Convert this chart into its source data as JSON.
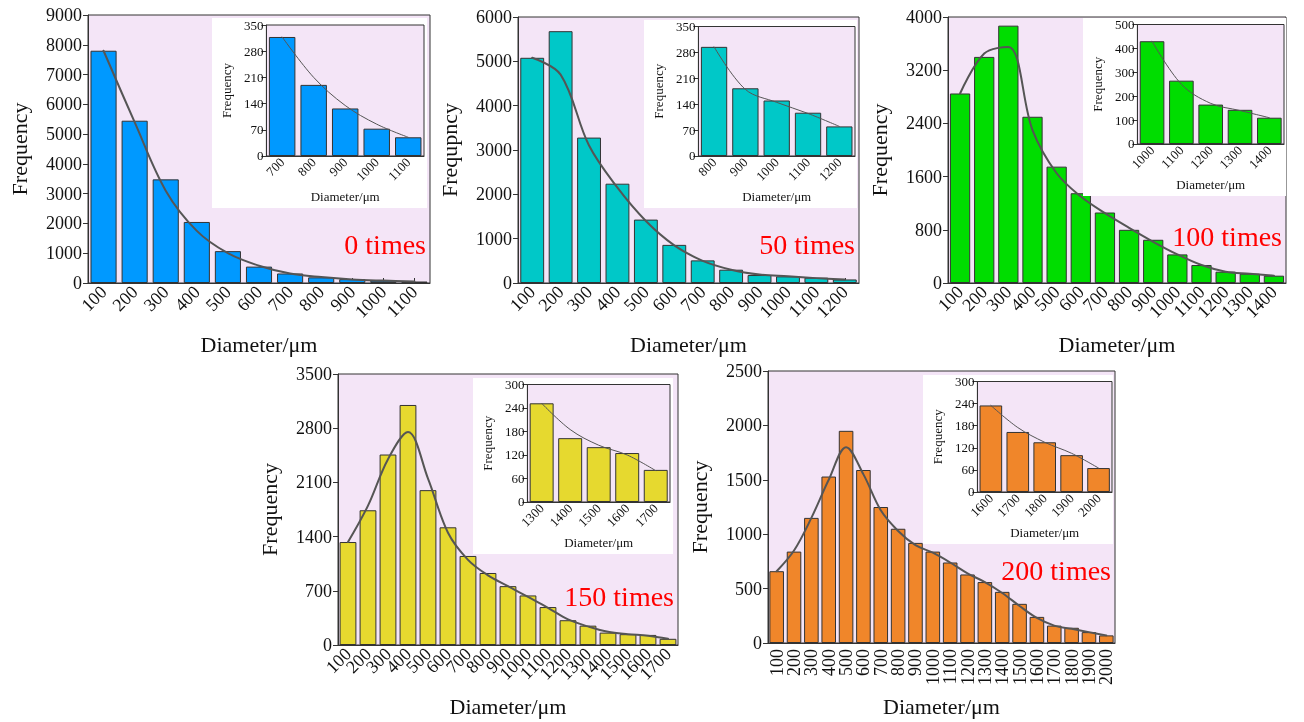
{
  "chart_data": [
    {
      "type": "bar",
      "xlabel": "Diameter/μm",
      "ylabel": "Frequency",
      "annotations": [
        "0 times"
      ],
      "marker": "none",
      "line_style": "solid",
      "categories": [
        "100",
        "200",
        "300",
        "400",
        "500",
        "600",
        "700",
        "800",
        "900",
        "1000",
        "1100"
      ],
      "ylim": [
        0,
        9000
      ],
      "yticks": [
        0,
        1000,
        2000,
        3000,
        4000,
        5000,
        6000,
        7000,
        8000,
        9000
      ],
      "series": [
        {
          "type": "bar",
          "color": "#0099ff",
          "values": [
            7800,
            5450,
            3480,
            2050,
            1070,
            550,
            320,
            190,
            130,
            80,
            50
          ]
        },
        {
          "type": "line",
          "color": "#555555",
          "values": [
            7800,
            5400,
            3100,
            1750,
            1000,
            580,
            320,
            200,
            120,
            80,
            50
          ]
        }
      ]
    },
    {
      "type": "bar",
      "xlabel": "Diameter/μm",
      "ylabel": "Frequency",
      "marker": "none",
      "line_style": "solid",
      "categories": [
        "700",
        "800",
        "900",
        "1000",
        "1100"
      ],
      "ylim": [
        0,
        350
      ],
      "yticks": [
        0,
        70,
        140,
        210,
        280,
        350
      ],
      "series": [
        {
          "type": "bar",
          "color": "#0099ff",
          "values": [
            318,
            190,
            127,
            73,
            50
          ]
        },
        {
          "type": "line",
          "color": "#555555",
          "values": [
            318,
            210,
            135,
            85,
            50
          ]
        }
      ]
    },
    {
      "type": "bar",
      "xlabel": "Diameter/μm",
      "ylabel": "Frequpncy",
      "annotations": [
        "50 times"
      ],
      "marker": "none",
      "line_style": "solid",
      "categories": [
        "100",
        "200",
        "300",
        "400",
        "500",
        "600",
        "700",
        "800",
        "900",
        "1000",
        "1100",
        "1200"
      ],
      "ylim": [
        0,
        6000
      ],
      "yticks": [
        0,
        1000,
        2000,
        3000,
        4000,
        5000,
        6000
      ],
      "series": [
        {
          "type": "bar",
          "color": "#00c8c8",
          "values": [
            5080,
            5680,
            3280,
            2240,
            1430,
            860,
            510,
            300,
            180,
            150,
            120,
            80
          ]
        },
        {
          "type": "line",
          "color": "#555555",
          "values": [
            5080,
            4700,
            3100,
            2150,
            1400,
            850,
            500,
            300,
            190,
            150,
            110,
            80
          ]
        }
      ]
    },
    {
      "type": "bar",
      "xlabel": "Diameter/μm",
      "ylabel": "Frequency",
      "marker": "none",
      "line_style": "solid",
      "categories": [
        "800",
        "900",
        "1000",
        "1100",
        "1200"
      ],
      "ylim": [
        0,
        350
      ],
      "yticks": [
        0,
        70,
        140,
        210,
        280,
        350
      ],
      "series": [
        {
          "type": "bar",
          "color": "#00c8c8",
          "values": [
            295,
            183,
            150,
            117,
            80
          ]
        },
        {
          "type": "line",
          "color": "#555555",
          "values": [
            295,
            180,
            145,
            115,
            80
          ]
        }
      ]
    },
    {
      "type": "bar",
      "xlabel": "Diameter/μm",
      "ylabel": "Frequency",
      "annotations": [
        "100 times"
      ],
      "marker": "none",
      "line_style": "solid",
      "categories": [
        "100",
        "200",
        "300",
        "400",
        "500",
        "600",
        "700",
        "800",
        "900",
        "1000",
        "1100",
        "1200",
        "1300",
        "1400"
      ],
      "ylim": [
        0,
        4000
      ],
      "yticks": [
        0,
        800,
        1600,
        2400,
        3200,
        4000
      ],
      "series": [
        {
          "type": "bar",
          "color": "#00dd00",
          "values": [
            2850,
            3400,
            3870,
            2500,
            1750,
            1350,
            1060,
            800,
            650,
            430,
            270,
            170,
            140,
            110
          ]
        },
        {
          "type": "line",
          "color": "#555555",
          "values": [
            2850,
            3450,
            3550,
            2300,
            1650,
            1300,
            1050,
            830,
            620,
            430,
            270,
            170,
            140,
            110
          ]
        }
      ]
    },
    {
      "type": "bar",
      "xlabel": "Diameter/μm",
      "ylabel": "Frequency",
      "marker": "none",
      "line_style": "solid",
      "categories": [
        "1000",
        "1100",
        "1200",
        "1300",
        "1400"
      ],
      "ylim": [
        0,
        500
      ],
      "yticks": [
        0,
        100,
        200,
        300,
        400,
        500
      ],
      "series": [
        {
          "type": "bar",
          "color": "#00dd00",
          "values": [
            430,
            265,
            165,
            143,
            110
          ]
        },
        {
          "type": "line",
          "color": "#555555",
          "values": [
            430,
            250,
            170,
            140,
            110
          ]
        }
      ]
    },
    {
      "type": "bar",
      "xlabel": "Diameter/μm",
      "ylabel": "Frequency",
      "annotations": [
        "150 times"
      ],
      "marker": "none",
      "line_style": "solid",
      "categories": [
        "100",
        "200",
        "300",
        "400",
        "500",
        "600",
        "700",
        "800",
        "900",
        "1000",
        "1100",
        "1200",
        "1300",
        "1400",
        "1500",
        "1600",
        "1700"
      ],
      "ylim": [
        0,
        3500
      ],
      "yticks": [
        0,
        700,
        1400,
        2100,
        2800,
        3500
      ],
      "series": [
        {
          "type": "bar",
          "color": "#e6d92f",
          "values": [
            1330,
            1740,
            2460,
            3100,
            2000,
            1520,
            1150,
            930,
            760,
            640,
            490,
            320,
            250,
            160,
            140,
            130,
            80
          ]
        },
        {
          "type": "line",
          "color": "#555555",
          "values": [
            1330,
            1800,
            2400,
            2750,
            2150,
            1450,
            1100,
            900,
            760,
            620,
            480,
            330,
            240,
            170,
            140,
            120,
            80
          ]
        }
      ]
    },
    {
      "type": "bar",
      "xlabel": "Diameter/μm",
      "ylabel": "Frequency",
      "marker": "none",
      "line_style": "solid",
      "categories": [
        "1300",
        "1400",
        "1500",
        "1600",
        "1700"
      ],
      "ylim": [
        0,
        300
      ],
      "yticks": [
        0,
        60,
        120,
        180,
        240,
        300
      ],
      "series": [
        {
          "type": "bar",
          "color": "#e6d92f",
          "values": [
            252,
            163,
            140,
            125,
            82
          ]
        },
        {
          "type": "line",
          "color": "#555555",
          "values": [
            252,
            185,
            145,
            120,
            80
          ]
        }
      ]
    },
    {
      "type": "bar",
      "xlabel": "Diameter/μm",
      "ylabel": "Frequency",
      "annotations": [
        "200 times"
      ],
      "marker": "none",
      "line_style": "solid",
      "categories": [
        "100",
        "200",
        "300",
        "400",
        "500",
        "600",
        "700",
        "800",
        "900",
        "1000",
        "1100",
        "1200",
        "1300",
        "1400",
        "1500",
        "1600",
        "1700",
        "1800",
        "1900",
        "2000"
      ],
      "ylim": [
        0,
        2500
      ],
      "yticks": [
        0,
        500,
        1000,
        1500,
        2000,
        2500
      ],
      "series": [
        {
          "type": "bar",
          "color": "#f0862a",
          "values": [
            660,
            840,
            1150,
            1530,
            1950,
            1590,
            1250,
            1050,
            920,
            840,
            740,
            630,
            560,
            470,
            360,
            240,
            160,
            140,
            100,
            70
          ]
        },
        {
          "type": "line",
          "color": "#555555",
          "values": [
            660,
            850,
            1150,
            1500,
            1800,
            1550,
            1220,
            1030,
            900,
            830,
            740,
            640,
            560,
            460,
            340,
            230,
            160,
            130,
            100,
            70
          ]
        }
      ]
    },
    {
      "type": "bar",
      "xlabel": "Diameter/μm",
      "ylabel": "Frequency",
      "marker": "none",
      "line_style": "solid",
      "categories": [
        "1600",
        "1700",
        "1800",
        "1900",
        "2000"
      ],
      "ylim": [
        0,
        300
      ],
      "yticks": [
        0,
        60,
        120,
        180,
        240,
        300
      ],
      "series": [
        {
          "type": "bar",
          "color": "#f0862a",
          "values": [
            235,
            163,
            135,
            100,
            65
          ]
        },
        {
          "type": "line",
          "color": "#555555",
          "values": [
            235,
            175,
            135,
            105,
            65
          ]
        }
      ]
    }
  ]
}
